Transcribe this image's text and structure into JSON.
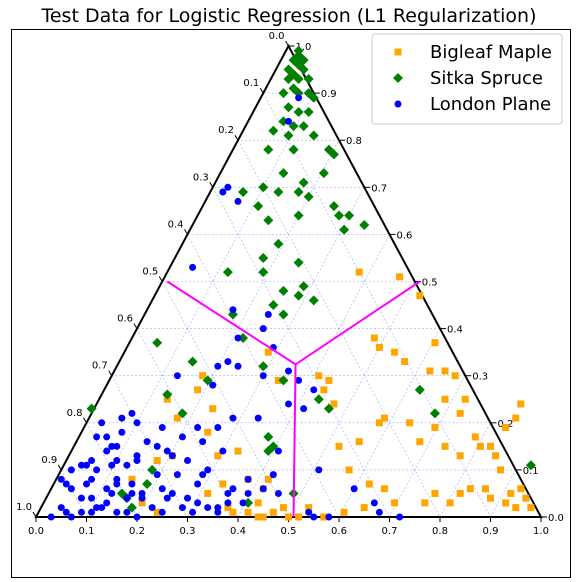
{
  "chart_data": {
    "type": "scatter",
    "subtype": "ternary",
    "title": "Test Data for Logistic Regression (L1 Regularization)",
    "legend_position": "top-right",
    "grid": true,
    "ticks": [
      "0.0",
      "0.1",
      "0.2",
      "0.3",
      "0.4",
      "0.5",
      "0.6",
      "0.7",
      "0.8",
      "0.9",
      "1.0"
    ],
    "decision_boundary": {
      "color": "#ff00ff",
      "center": [
        0.514,
        0.324
      ],
      "endpoints": [
        [
          0.26,
          0.5
        ],
        [
          0.76,
          0.5
        ],
        [
          0.51,
          0.0
        ]
      ]
    },
    "series": [
      {
        "name": "Bigleaf Maple",
        "color": "#ffa500",
        "marker": "square",
        "points": [
          [
            0.64,
            0.52
          ],
          [
            0.72,
            0.51
          ],
          [
            0.76,
            0.47
          ],
          [
            0.79,
            0.37
          ],
          [
            0.67,
            0.38
          ],
          [
            0.68,
            0.36
          ],
          [
            0.71,
            0.35
          ],
          [
            0.73,
            0.33
          ],
          [
            0.78,
            0.31
          ],
          [
            0.81,
            0.31
          ],
          [
            0.83,
            0.3
          ],
          [
            0.85,
            0.25
          ],
          [
            0.81,
            0.25
          ],
          [
            0.84,
            0.22
          ],
          [
            0.69,
            0.21
          ],
          [
            0.68,
            0.2
          ],
          [
            0.74,
            0.2
          ],
          [
            0.79,
            0.19
          ],
          [
            0.76,
            0.16
          ],
          [
            0.81,
            0.15
          ],
          [
            0.87,
            0.17
          ],
          [
            0.88,
            0.15
          ],
          [
            0.84,
            0.13
          ],
          [
            0.9,
            0.15
          ],
          [
            0.91,
            0.13
          ],
          [
            0.93,
            0.19
          ],
          [
            0.95,
            0.21
          ],
          [
            0.96,
            0.24
          ],
          [
            0.92,
            0.1
          ],
          [
            0.89,
            0.06
          ],
          [
            0.9,
            0.04
          ],
          [
            0.93,
            0.03
          ],
          [
            0.94,
            0.05
          ],
          [
            0.95,
            0.02
          ],
          [
            0.97,
            0.04
          ],
          [
            0.98,
            0.02
          ],
          [
            0.96,
            0.06
          ],
          [
            0.86,
            0.06
          ],
          [
            0.84,
            0.05
          ],
          [
            0.82,
            0.03
          ],
          [
            0.79,
            0.05
          ],
          [
            0.77,
            0.03
          ],
          [
            0.71,
            0.03
          ],
          [
            0.65,
            0.02
          ],
          [
            0.61,
            0.01
          ],
          [
            0.57,
            0.0
          ],
          [
            0.62,
            0.1
          ],
          [
            0.64,
            0.16
          ],
          [
            0.6,
            0.15
          ],
          [
            0.57,
            0.27
          ],
          [
            0.58,
            0.29
          ],
          [
            0.56,
            0.3
          ],
          [
            0.59,
            0.24
          ],
          [
            0.48,
            0.29
          ],
          [
            0.46,
            0.35
          ],
          [
            0.33,
            0.3
          ],
          [
            0.32,
            0.27
          ],
          [
            0.26,
            0.25
          ],
          [
            0.28,
            0.21
          ],
          [
            0.35,
            0.23
          ],
          [
            0.34,
            0.18
          ],
          [
            0.4,
            0.14
          ],
          [
            0.36,
            0.13
          ],
          [
            0.27,
            0.13
          ],
          [
            0.24,
            0.12
          ],
          [
            0.46,
            0.08
          ],
          [
            0.45,
            0.06
          ],
          [
            0.44,
            0.03
          ],
          [
            0.38,
            0.02
          ],
          [
            0.39,
            0.01
          ],
          [
            0.42,
            0.01
          ],
          [
            0.44,
            0.0
          ],
          [
            0.45,
            0.0
          ],
          [
            0.47,
            0.01
          ],
          [
            0.5,
            0.0
          ],
          [
            0.52,
            0.0
          ],
          [
            0.21,
            0.03
          ],
          [
            0.24,
            0.01
          ],
          [
            0.19,
            0.08
          ],
          [
            0.37,
            0.07
          ],
          [
            0.34,
            0.05
          ],
          [
            0.42,
            0.08
          ],
          [
            0.49,
            0.02
          ],
          [
            0.54,
            0.02
          ],
          [
            0.66,
            0.07
          ],
          [
            0.69,
            0.06
          ]
        ]
      },
      {
        "name": "Sitka Spruce",
        "color": "#008000",
        "marker": "diamond",
        "points": [
          [
            0.52,
            0.99
          ],
          [
            0.52,
            0.98
          ],
          [
            0.51,
            0.97
          ],
          [
            0.53,
            0.97
          ],
          [
            0.52,
            0.96
          ],
          [
            0.5,
            0.95
          ],
          [
            0.53,
            0.95
          ],
          [
            0.51,
            0.94
          ],
          [
            0.52,
            0.93
          ],
          [
            0.5,
            0.93
          ],
          [
            0.54,
            0.93
          ],
          [
            0.51,
            0.91
          ],
          [
            0.49,
            0.9
          ],
          [
            0.52,
            0.9
          ],
          [
            0.54,
            0.9
          ],
          [
            0.55,
            0.89
          ],
          [
            0.5,
            0.87
          ],
          [
            0.52,
            0.86
          ],
          [
            0.54,
            0.86
          ],
          [
            0.49,
            0.84
          ],
          [
            0.51,
            0.83
          ],
          [
            0.53,
            0.83
          ],
          [
            0.55,
            0.81
          ],
          [
            0.47,
            0.82
          ],
          [
            0.5,
            0.81
          ],
          [
            0.46,
            0.78
          ],
          [
            0.51,
            0.78
          ],
          [
            0.58,
            0.78
          ],
          [
            0.59,
            0.77
          ],
          [
            0.57,
            0.73
          ],
          [
            0.49,
            0.73
          ],
          [
            0.53,
            0.71
          ],
          [
            0.41,
            0.69
          ],
          [
            0.45,
            0.7
          ],
          [
            0.48,
            0.69
          ],
          [
            0.52,
            0.69
          ],
          [
            0.54,
            0.68
          ],
          [
            0.44,
            0.66
          ],
          [
            0.52,
            0.64
          ],
          [
            0.59,
            0.66
          ],
          [
            0.6,
            0.64
          ],
          [
            0.62,
            0.64
          ],
          [
            0.65,
            0.62
          ],
          [
            0.61,
            0.61
          ],
          [
            0.46,
            0.63
          ],
          [
            0.48,
            0.58
          ],
          [
            0.45,
            0.55
          ],
          [
            0.52,
            0.54
          ],
          [
            0.38,
            0.52
          ],
          [
            0.45,
            0.52
          ],
          [
            0.53,
            0.49
          ],
          [
            0.49,
            0.48
          ],
          [
            0.52,
            0.47
          ],
          [
            0.47,
            0.45
          ],
          [
            0.55,
            0.46
          ],
          [
            0.39,
            0.43
          ],
          [
            0.49,
            0.43
          ],
          [
            0.41,
            0.38
          ],
          [
            0.24,
            0.37
          ],
          [
            0.31,
            0.33
          ],
          [
            0.34,
            0.29
          ],
          [
            0.49,
            0.29
          ],
          [
            0.45,
            0.32
          ],
          [
            0.26,
            0.26
          ],
          [
            0.56,
            0.25
          ],
          [
            0.58,
            0.23
          ],
          [
            0.29,
            0.22
          ],
          [
            0.11,
            0.23
          ],
          [
            0.46,
            0.17
          ],
          [
            0.47,
            0.15
          ],
          [
            0.23,
            0.1
          ],
          [
            0.22,
            0.07
          ],
          [
            0.18,
            0.04
          ],
          [
            0.17,
            0.05
          ],
          [
            0.51,
            0.05
          ],
          [
            0.76,
            0.27
          ],
          [
            0.79,
            0.22
          ],
          [
            0.98,
            0.11
          ],
          [
            0.46,
            0.14
          ],
          [
            0.42,
            0.03
          ],
          [
            0.19,
            0.02
          ]
        ]
      },
      {
        "name": "London Plane",
        "color": "#0000ff",
        "marker": "circle",
        "points": [
          [
            0.52,
            0.89
          ],
          [
            0.5,
            0.84
          ],
          [
            0.38,
            0.7
          ],
          [
            0.37,
            0.69
          ],
          [
            0.4,
            0.67
          ],
          [
            0.31,
            0.53
          ],
          [
            0.39,
            0.44
          ],
          [
            0.46,
            0.43
          ],
          [
            0.4,
            0.38
          ],
          [
            0.38,
            0.33
          ],
          [
            0.36,
            0.32
          ],
          [
            0.35,
            0.28
          ],
          [
            0.28,
            0.3
          ],
          [
            0.45,
            0.4
          ],
          [
            0.47,
            0.36
          ],
          [
            0.4,
            0.32
          ],
          [
            0.45,
            0.3
          ],
          [
            0.5,
            0.31
          ],
          [
            0.52,
            0.29
          ],
          [
            0.55,
            0.27
          ],
          [
            0.53,
            0.23
          ],
          [
            0.5,
            0.24
          ],
          [
            0.44,
            0.21
          ],
          [
            0.39,
            0.21
          ],
          [
            0.32,
            0.19
          ],
          [
            0.33,
            0.16
          ],
          [
            0.36,
            0.19
          ],
          [
            0.29,
            0.17
          ],
          [
            0.25,
            0.19
          ],
          [
            0.24,
            0.15
          ],
          [
            0.22,
            0.16
          ],
          [
            0.26,
            0.14
          ],
          [
            0.27,
            0.13
          ],
          [
            0.24,
            0.09
          ],
          [
            0.18,
            0.11
          ],
          [
            0.2,
            0.13
          ],
          [
            0.2,
            0.2
          ],
          [
            0.19,
            0.22
          ],
          [
            0.17,
            0.21
          ],
          [
            0.13,
            0.2
          ],
          [
            0.14,
            0.17
          ],
          [
            0.12,
            0.17
          ],
          [
            0.15,
            0.15
          ],
          [
            0.14,
            0.14
          ],
          [
            0.2,
            0.12
          ],
          [
            0.16,
            0.12
          ],
          [
            0.15,
            0.11
          ],
          [
            0.12,
            0.1
          ],
          [
            0.11,
            0.12
          ],
          [
            0.1,
            0.11
          ],
          [
            0.09,
            0.11
          ],
          [
            0.07,
            0.1
          ],
          [
            0.05,
            0.08
          ],
          [
            0.06,
            0.07
          ],
          [
            0.07,
            0.06
          ],
          [
            0.1,
            0.07
          ],
          [
            0.11,
            0.08
          ],
          [
            0.16,
            0.08
          ],
          [
            0.16,
            0.07
          ],
          [
            0.19,
            0.07
          ],
          [
            0.19,
            0.05
          ],
          [
            0.18,
            0.04
          ],
          [
            0.21,
            0.05
          ],
          [
            0.21,
            0.04
          ],
          [
            0.25,
            0.06
          ],
          [
            0.27,
            0.05
          ],
          [
            0.3,
            0.04
          ],
          [
            0.32,
            0.03
          ],
          [
            0.34,
            0.02
          ],
          [
            0.36,
            0.02
          ],
          [
            0.38,
            0.03
          ],
          [
            0.42,
            0.05
          ],
          [
            0.41,
            0.03
          ],
          [
            0.36,
            0.01
          ],
          [
            0.31,
            0.01
          ],
          [
            0.29,
            0.02
          ],
          [
            0.25,
            0.01
          ],
          [
            0.2,
            0.0
          ],
          [
            0.18,
            0.01
          ],
          [
            0.16,
            0.01
          ],
          [
            0.13,
            0.02
          ],
          [
            0.12,
            0.02
          ],
          [
            0.11,
            0.01
          ],
          [
            0.09,
            0.01
          ],
          [
            0.07,
            0.0
          ],
          [
            0.06,
            0.01
          ],
          [
            0.03,
            0.0
          ],
          [
            0.05,
            0.02
          ],
          [
            0.09,
            0.04
          ],
          [
            0.11,
            0.04
          ],
          [
            0.14,
            0.03
          ],
          [
            0.15,
            0.05
          ],
          [
            0.14,
            0.06
          ],
          [
            0.42,
            0.08
          ],
          [
            0.38,
            0.05
          ],
          [
            0.39,
            0.06
          ],
          [
            0.45,
            0.06
          ],
          [
            0.48,
            0.05
          ],
          [
            0.48,
            0.14
          ],
          [
            0.47,
            0.09
          ],
          [
            0.56,
            0.1
          ],
          [
            0.63,
            0.06
          ],
          [
            0.72,
            0.0
          ],
          [
            0.68,
            0.01
          ],
          [
            0.67,
            0.03
          ],
          [
            0.58,
            0.0
          ],
          [
            0.55,
            0.0
          ],
          [
            0.54,
            0.01
          ],
          [
            0.37,
            0.14
          ],
          [
            0.33,
            0.09
          ],
          [
            0.34,
            0.1
          ],
          [
            0.32,
            0.07
          ],
          [
            0.23,
            0.02
          ],
          [
            0.26,
            0.04
          ],
          [
            0.28,
            0.09
          ],
          [
            0.3,
            0.12
          ],
          [
            0.17,
            0.18
          ],
          [
            0.16,
            0.15
          ]
        ]
      }
    ]
  }
}
